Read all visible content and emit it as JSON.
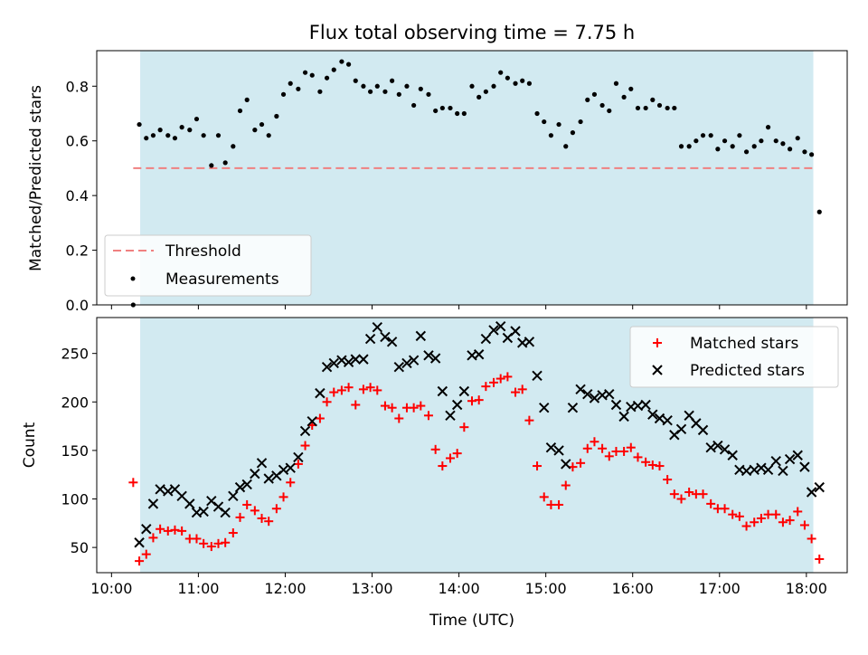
{
  "title": "Flux total observing time = 7.75 h",
  "colors": {
    "band": "#add8e6",
    "threshold": "#f08080",
    "measurements": "#000000",
    "matched": "#ff0000",
    "predicted": "#000000"
  },
  "top_panel": {
    "ylabel": "Matched/Predicted stars",
    "yticks": [
      "0.0",
      "0.2",
      "0.4",
      "0.6",
      "0.8"
    ],
    "legend": {
      "threshold": "Threshold",
      "measurements": "Measurements"
    }
  },
  "bottom_panel": {
    "ylabel": "Count",
    "xlabel": "Time (UTC)",
    "yticks": [
      "50",
      "100",
      "150",
      "200",
      "250"
    ],
    "legend": {
      "matched": "Matched stars",
      "predicted": "Predicted stars"
    }
  },
  "xticks": [
    "10:00",
    "11:00",
    "12:00",
    "13:00",
    "14:00",
    "15:00",
    "16:00",
    "17:00",
    "18:00"
  ],
  "chart_data": [
    {
      "type": "scatter",
      "title": "Flux total observing time = 7.75 h",
      "xlabel": "",
      "ylabel": "Matched/Predicted stars",
      "xlim": [
        9.83,
        18.47
      ],
      "ylim": [
        0.0,
        0.93
      ],
      "legend_position": "lower left",
      "shaded_span": [
        10.33,
        18.08
      ],
      "threshold": {
        "name": "Threshold",
        "y": 0.5,
        "x_range": [
          10.25,
          18.08
        ]
      },
      "series": [
        {
          "name": "Measurements",
          "x": [
            10.25,
            10.32,
            10.4,
            10.48,
            10.56,
            10.65,
            10.73,
            10.81,
            10.9,
            10.98,
            11.06,
            11.15,
            11.23,
            11.31,
            11.4,
            11.48,
            11.56,
            11.65,
            11.73,
            11.81,
            11.9,
            11.98,
            12.06,
            12.15,
            12.23,
            12.31,
            12.4,
            12.48,
            12.56,
            12.65,
            12.73,
            12.81,
            12.9,
            12.98,
            13.06,
            13.15,
            13.23,
            13.31,
            13.4,
            13.48,
            13.56,
            13.65,
            13.73,
            13.81,
            13.9,
            13.98,
            14.06,
            14.15,
            14.23,
            14.31,
            14.4,
            14.48,
            14.56,
            14.65,
            14.73,
            14.81,
            14.9,
            14.98,
            15.06,
            15.15,
            15.23,
            15.31,
            15.4,
            15.48,
            15.56,
            15.65,
            15.73,
            15.81,
            15.9,
            15.98,
            16.06,
            16.15,
            16.23,
            16.31,
            16.4,
            16.48,
            16.56,
            16.65,
            16.73,
            16.81,
            16.9,
            16.98,
            17.06,
            17.15,
            17.23,
            17.31,
            17.4,
            17.48,
            17.56,
            17.65,
            17.73,
            17.81,
            17.9,
            17.98,
            18.06,
            18.15
          ],
          "y": [
            0.0,
            0.66,
            0.61,
            0.62,
            0.64,
            0.62,
            0.61,
            0.65,
            0.64,
            0.68,
            0.62,
            0.51,
            0.62,
            0.52,
            0.58,
            0.71,
            0.75,
            0.64,
            0.66,
            0.62,
            0.69,
            0.77,
            0.81,
            0.79,
            0.85,
            0.84,
            0.78,
            0.83,
            0.86,
            0.89,
            0.88,
            0.82,
            0.8,
            0.78,
            0.8,
            0.78,
            0.82,
            0.77,
            0.8,
            0.73,
            0.79,
            0.77,
            0.71,
            0.72,
            0.72,
            0.7,
            0.7,
            0.8,
            0.76,
            0.78,
            0.8,
            0.85,
            0.83,
            0.81,
            0.82,
            0.81,
            0.7,
            0.67,
            0.62,
            0.66,
            0.58,
            0.63,
            0.67,
            0.75,
            0.77,
            0.73,
            0.71,
            0.81,
            0.76,
            0.79,
            0.72,
            0.72,
            0.75,
            0.73,
            0.72,
            0.72,
            0.58,
            0.58,
            0.6,
            0.62,
            0.62,
            0.57,
            0.6,
            0.58,
            0.62,
            0.56,
            0.58,
            0.6,
            0.65,
            0.6,
            0.59,
            0.57,
            0.61,
            0.56,
            0.55,
            0.34
          ]
        }
      ]
    },
    {
      "type": "scatter",
      "title": "",
      "xlabel": "Time (UTC)",
      "ylabel": "Count",
      "xlim": [
        9.83,
        18.47
      ],
      "ylim": [
        24,
        287
      ],
      "legend_position": "upper right",
      "shaded_span": [
        10.33,
        18.08
      ],
      "series": [
        {
          "name": "Matched stars",
          "marker": "plus",
          "x": [
            10.25,
            10.32,
            10.4,
            10.48,
            10.56,
            10.65,
            10.73,
            10.81,
            10.9,
            10.98,
            11.06,
            11.15,
            11.23,
            11.31,
            11.4,
            11.48,
            11.56,
            11.65,
            11.73,
            11.81,
            11.9,
            11.98,
            12.06,
            12.15,
            12.23,
            12.31,
            12.4,
            12.48,
            12.56,
            12.65,
            12.73,
            12.81,
            12.9,
            12.98,
            13.06,
            13.15,
            13.23,
            13.31,
            13.4,
            13.48,
            13.56,
            13.65,
            13.73,
            13.81,
            13.9,
            13.98,
            14.06,
            14.15,
            14.23,
            14.31,
            14.4,
            14.48,
            14.56,
            14.65,
            14.73,
            14.81,
            14.9,
            14.98,
            15.06,
            15.15,
            15.23,
            15.31,
            15.4,
            15.48,
            15.56,
            15.65,
            15.73,
            15.81,
            15.9,
            15.98,
            16.06,
            16.15,
            16.23,
            16.31,
            16.4,
            16.48,
            16.56,
            16.65,
            16.73,
            16.81,
            16.9,
            16.98,
            17.06,
            17.15,
            17.23,
            17.31,
            17.4,
            17.48,
            17.56,
            17.65,
            17.73,
            17.81,
            17.9,
            17.98,
            18.06,
            18.15
          ],
          "y": [
            117,
            36,
            43,
            60,
            69,
            67,
            68,
            67,
            59,
            59,
            54,
            51,
            54,
            55,
            65,
            81,
            94,
            88,
            80,
            77,
            90,
            102,
            117,
            136,
            155,
            176,
            183,
            200,
            210,
            212,
            215,
            197,
            213,
            215,
            212,
            196,
            194,
            183,
            194,
            194,
            196,
            186,
            151,
            134,
            142,
            147,
            174,
            201,
            202,
            216,
            220,
            224,
            226,
            210,
            213,
            181,
            134,
            102,
            94,
            94,
            114,
            133,
            137,
            152,
            159,
            152,
            144,
            149,
            149,
            153,
            143,
            138,
            135,
            134,
            120,
            105,
            100,
            107,
            105,
            105,
            95,
            90,
            90,
            84,
            82,
            72,
            76,
            80,
            84,
            84,
            76,
            78,
            87,
            73,
            59,
            38
          ]
        },
        {
          "name": "Predicted stars",
          "marker": "x",
          "x": [
            10.32,
            10.4,
            10.48,
            10.56,
            10.65,
            10.73,
            10.81,
            10.9,
            10.98,
            11.06,
            11.15,
            11.23,
            11.31,
            11.4,
            11.48,
            11.56,
            11.65,
            11.73,
            11.81,
            11.9,
            11.98,
            12.06,
            12.15,
            12.23,
            12.31,
            12.4,
            12.48,
            12.56,
            12.65,
            12.73,
            12.81,
            12.9,
            12.98,
            13.06,
            13.15,
            13.23,
            13.31,
            13.4,
            13.48,
            13.56,
            13.65,
            13.73,
            13.81,
            13.9,
            13.98,
            14.06,
            14.15,
            14.23,
            14.31,
            14.4,
            14.48,
            14.56,
            14.65,
            14.73,
            14.81,
            14.9,
            14.98,
            15.06,
            15.15,
            15.23,
            15.31,
            15.4,
            15.48,
            15.56,
            15.65,
            15.73,
            15.81,
            15.9,
            15.98,
            16.06,
            16.15,
            16.23,
            16.31,
            16.4,
            16.48,
            16.56,
            16.65,
            16.73,
            16.81,
            16.9,
            16.98,
            17.06,
            17.15,
            17.23,
            17.31,
            17.4,
            17.48,
            17.56,
            17.65,
            17.73,
            17.81,
            17.9,
            17.98,
            18.06,
            18.15
          ],
          "y": [
            55,
            69,
            95,
            110,
            108,
            110,
            103,
            95,
            86,
            87,
            98,
            92,
            86,
            103,
            112,
            115,
            126,
            137,
            121,
            124,
            130,
            132,
            143,
            170,
            180,
            209,
            236,
            240,
            243,
            241,
            244,
            244,
            265,
            277,
            267,
            262,
            236,
            240,
            243,
            268,
            248,
            245,
            211,
            186,
            197,
            211,
            248,
            249,
            265,
            274,
            278,
            266,
            273,
            261,
            262,
            227,
            194,
            153,
            150,
            136,
            194,
            213,
            208,
            204,
            207,
            208,
            197,
            185,
            195,
            196,
            197,
            187,
            183,
            181,
            166,
            172,
            186,
            178,
            171,
            153,
            155,
            151,
            145,
            130,
            129,
            130,
            132,
            130,
            139,
            129,
            141,
            145,
            133,
            107,
            112
          ]
        }
      ]
    }
  ]
}
